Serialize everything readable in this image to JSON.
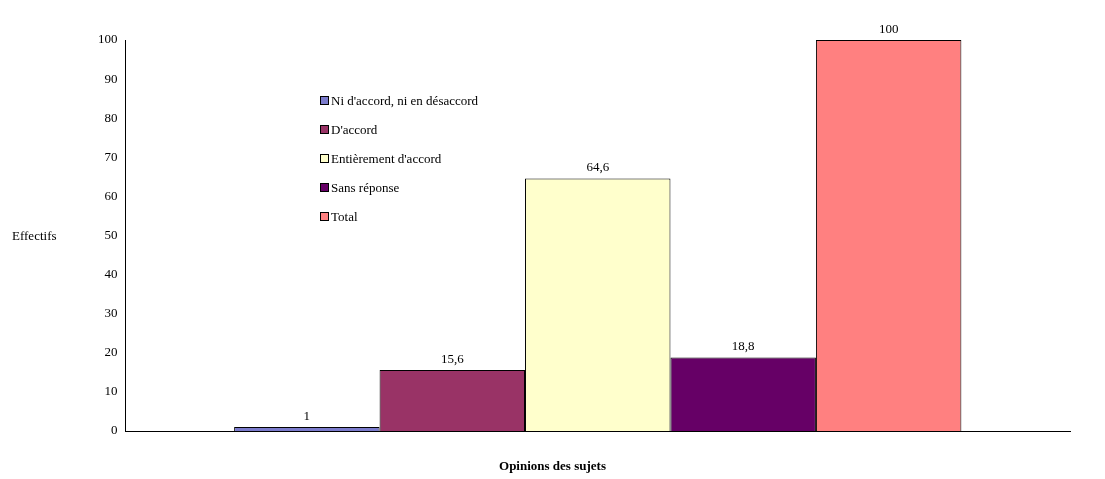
{
  "chart_data": {
    "type": "bar",
    "xlabel": "Opinions des sujets",
    "ylabel": "Effectifs",
    "categories": [
      null
    ],
    "series": [
      {
        "name": "Ni d'accord, ni en désaccord",
        "color": "#7b7bcc",
        "values": [
          1
        ],
        "value_labels": [
          "1"
        ]
      },
      {
        "name": "D'accord",
        "color": "#993366",
        "values": [
          15.6
        ],
        "value_labels": [
          "15,6"
        ]
      },
      {
        "name": "Entièrement d'accord",
        "color": "#ffffcc",
        "values": [
          64.6
        ],
        "value_labels": [
          "64,6"
        ]
      },
      {
        "name": "Sans réponse",
        "color": "#660066",
        "values": [
          18.8
        ],
        "value_labels": [
          "18,8"
        ]
      },
      {
        "name": "Total",
        "color": "#ff8080",
        "values": [
          100
        ],
        "value_labels": [
          "100"
        ]
      }
    ],
    "ylim": [
      0,
      100
    ],
    "yticks": [
      0,
      10,
      20,
      30,
      40,
      50,
      60,
      70,
      80,
      90,
      100
    ],
    "grid": false,
    "legend": "top left"
  }
}
